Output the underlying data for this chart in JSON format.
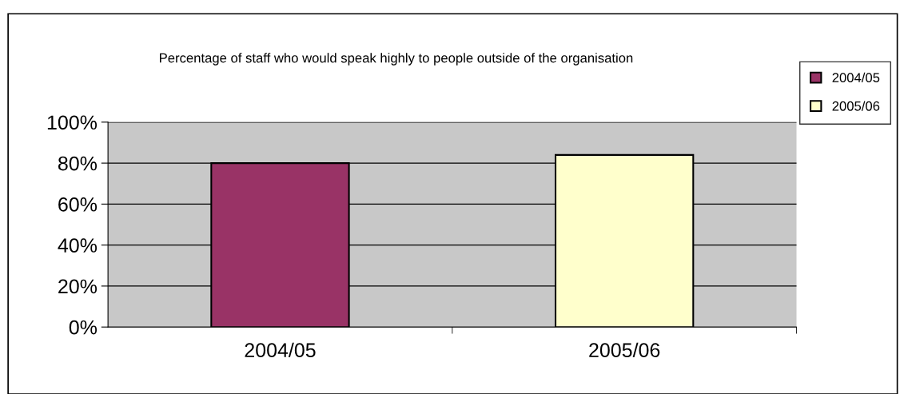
{
  "chart_data": {
    "type": "bar",
    "title": "Percentage of staff who would speak highly to people outside of the organisation",
    "categories": [
      "2004/05",
      "2005/06"
    ],
    "series": [
      {
        "name": "2004/05",
        "color": "#993366",
        "values": [
          80,
          null
        ]
      },
      {
        "name": "2005/06",
        "color": "#ffffcc",
        "values": [
          null,
          84
        ]
      }
    ],
    "ylim": [
      0,
      100
    ],
    "yticks": [
      {
        "value": 0,
        "label": "0%"
      },
      {
        "value": 20,
        "label": "20%"
      },
      {
        "value": 40,
        "label": "40%"
      },
      {
        "value": 60,
        "label": "60%"
      },
      {
        "value": 80,
        "label": "80%"
      },
      {
        "value": 100,
        "label": "100%"
      }
    ],
    "grid": "y",
    "legend": "top right"
  }
}
